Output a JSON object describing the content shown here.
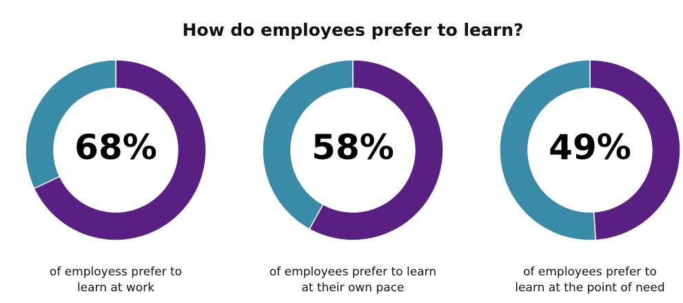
{
  "title": "How do employees prefer to learn?",
  "chart_data": [
    {
      "type": "donut",
      "categories": [
        null,
        null
      ],
      "values": [
        68,
        32
      ],
      "value_labels": [
        "68%",
        null
      ],
      "colors": [
        "#5a1f83",
        "#3a8ba8"
      ],
      "caption": [
        "of employess prefer to",
        "learn at work"
      ]
    },
    {
      "type": "donut",
      "categories": [
        null,
        null
      ],
      "values": [
        58,
        42
      ],
      "value_labels": [
        "58%",
        null
      ],
      "colors": [
        "#5a1f83",
        "#3a8ba8"
      ],
      "caption": [
        "of employees prefer to learn",
        "at their own pace"
      ]
    },
    {
      "type": "donut",
      "categories": [
        null,
        null
      ],
      "values": [
        49,
        51
      ],
      "value_labels": [
        "49%",
        null
      ],
      "colors": [
        "#5a1f83",
        "#3a8ba8"
      ],
      "caption": [
        "of employees prefer to",
        "learn at the point of need"
      ]
    }
  ]
}
